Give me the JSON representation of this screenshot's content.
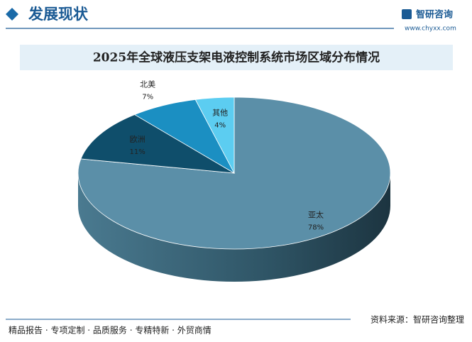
{
  "header": {
    "title": "发展现状",
    "logo_name": "智研咨询",
    "logo_url": "www.chyxx.com"
  },
  "chart_data": {
    "type": "pie",
    "title": "2025年全球液压支架电液控制系统市场区域分布情况",
    "categories": [
      "亚太",
      "欧洲",
      "北美",
      "其他"
    ],
    "values": [
      78,
      11,
      7,
      4
    ],
    "value_labels": [
      "78%",
      "11%",
      "7%",
      "4%"
    ],
    "colors": [
      "#5b8fa8",
      "#0f4e6b",
      "#1b8fc2",
      "#5ccdf1"
    ]
  },
  "footer": {
    "services": "精品报告 · 专项定制 · 品质服务 · 专精特新 · 外贸商情",
    "source": "资料来源：智研咨询整理"
  }
}
